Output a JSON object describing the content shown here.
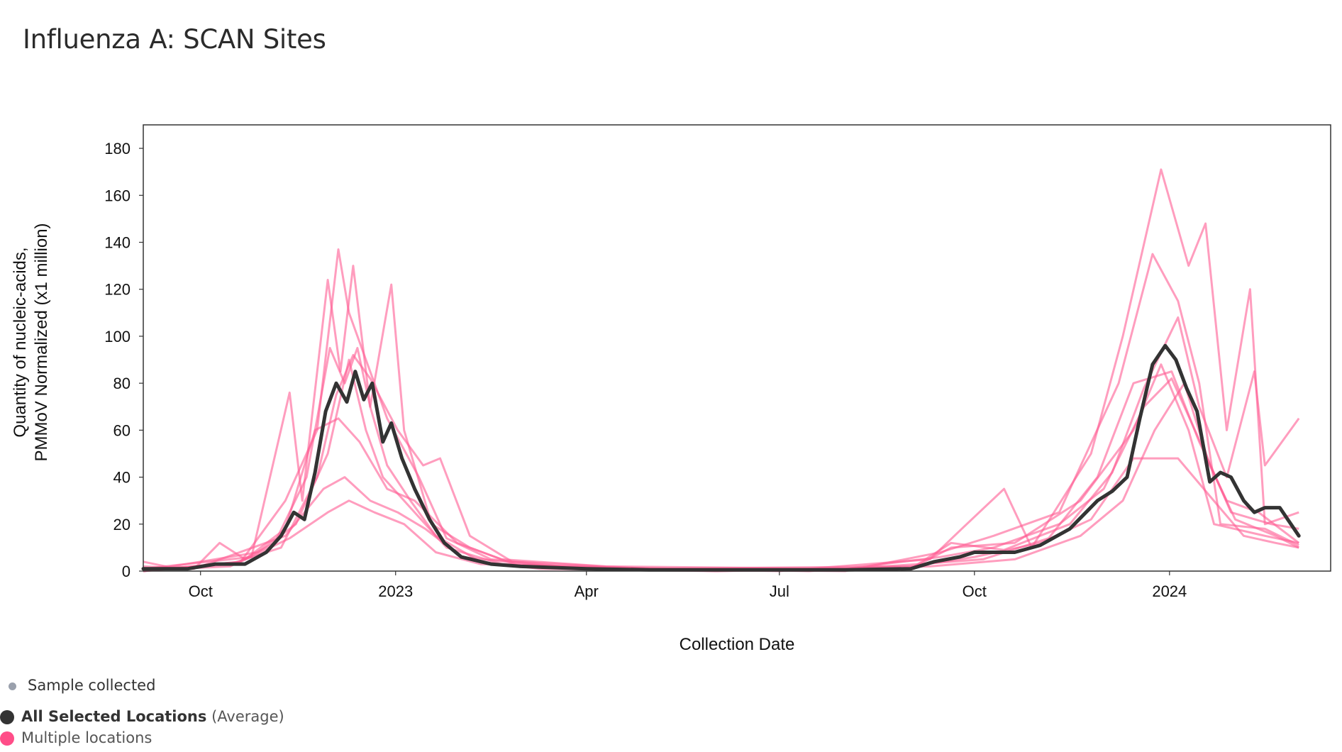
{
  "title": "Influenza A: SCAN Sites",
  "colors": {
    "sites": "#ff5c93",
    "average": "#333333",
    "sample_dot": "#9aa0ac",
    "frame": "#333333"
  },
  "legend": {
    "sample": "Sample collected",
    "average_bold": "All Selected Locations",
    "average_suffix": "(Average)",
    "multiple": "Multiple locations"
  },
  "chart_data": {
    "type": "line",
    "title": "Influenza A: SCAN Sites",
    "xlabel": "Collection Date",
    "ylabel_lines": [
      "Quantity of nucleic-acids,",
      "PMMoV Normalized (x1 million)"
    ],
    "ylim": [
      0,
      190
    ],
    "yticks": [
      0,
      20,
      40,
      60,
      80,
      100,
      120,
      140,
      160,
      180
    ],
    "xlim": [
      "2022-09-04",
      "2024-03-17"
    ],
    "xticks": [
      {
        "date": "2022-10-01",
        "label": "Oct"
      },
      {
        "date": "2023-01-01",
        "label": "2023"
      },
      {
        "date": "2023-04-01",
        "label": "Apr"
      },
      {
        "date": "2023-07-01",
        "label": "Jul"
      },
      {
        "date": "2023-10-01",
        "label": "Oct"
      },
      {
        "date": "2024-01-01",
        "label": "2024"
      }
    ],
    "grid": false,
    "legend_position": "bottom-left",
    "series": [
      {
        "name": "All Selected Locations (Average)",
        "points": [
          [
            "2022-09-04",
            1
          ],
          [
            "2022-09-25",
            1
          ],
          [
            "2022-10-08",
            3
          ],
          [
            "2022-10-22",
            3
          ],
          [
            "2022-11-01",
            8
          ],
          [
            "2022-11-08",
            15
          ],
          [
            "2022-11-14",
            25
          ],
          [
            "2022-11-19",
            22
          ],
          [
            "2022-11-24",
            42
          ],
          [
            "2022-11-29",
            68
          ],
          [
            "2022-12-04",
            80
          ],
          [
            "2022-12-09",
            72
          ],
          [
            "2022-12-13",
            85
          ],
          [
            "2022-12-17",
            73
          ],
          [
            "2022-12-21",
            80
          ],
          [
            "2022-12-26",
            55
          ],
          [
            "2022-12-30",
            63
          ],
          [
            "2023-01-04",
            48
          ],
          [
            "2023-01-10",
            35
          ],
          [
            "2023-01-17",
            22
          ],
          [
            "2023-01-24",
            12
          ],
          [
            "2023-02-01",
            6
          ],
          [
            "2023-02-15",
            3
          ],
          [
            "2023-03-01",
            2
          ],
          [
            "2023-04-01",
            1
          ],
          [
            "2023-05-01",
            0.5
          ],
          [
            "2023-06-01",
            0.5
          ],
          [
            "2023-07-01",
            0.5
          ],
          [
            "2023-08-01",
            0.5
          ],
          [
            "2023-09-01",
            1
          ],
          [
            "2023-09-12",
            4
          ],
          [
            "2023-09-24",
            6
          ],
          [
            "2023-10-01",
            8
          ],
          [
            "2023-10-20",
            8
          ],
          [
            "2023-11-01",
            11
          ],
          [
            "2023-11-15",
            18
          ],
          [
            "2023-11-28",
            30
          ],
          [
            "2023-12-05",
            34
          ],
          [
            "2023-12-12",
            40
          ],
          [
            "2023-12-18",
            65
          ],
          [
            "2023-12-24",
            88
          ],
          [
            "2023-12-30",
            96
          ],
          [
            "2024-01-04",
            90
          ],
          [
            "2024-01-09",
            78
          ],
          [
            "2024-01-14",
            68
          ],
          [
            "2024-01-20",
            38
          ],
          [
            "2024-01-25",
            42
          ],
          [
            "2024-01-30",
            40
          ],
          [
            "2024-02-05",
            30
          ],
          [
            "2024-02-10",
            25
          ],
          [
            "2024-02-15",
            27
          ],
          [
            "2024-02-22",
            27
          ],
          [
            "2024-03-02",
            15
          ]
        ]
      }
    ],
    "site_series": [
      {
        "points": [
          [
            "2022-09-04",
            4
          ],
          [
            "2022-09-20",
            1
          ],
          [
            "2022-10-15",
            2
          ],
          [
            "2022-11-05",
            12
          ],
          [
            "2022-11-20",
            40
          ],
          [
            "2022-12-01",
            95
          ],
          [
            "2022-12-08",
            80
          ],
          [
            "2022-12-14",
            95
          ],
          [
            "2022-12-20",
            70
          ],
          [
            "2022-12-28",
            45
          ],
          [
            "2023-01-08",
            30
          ],
          [
            "2023-01-20",
            15
          ],
          [
            "2023-02-10",
            4
          ],
          [
            "2023-03-10",
            1
          ],
          [
            "2023-06-01",
            0
          ],
          [
            "2023-09-01",
            1
          ],
          [
            "2023-09-20",
            10
          ],
          [
            "2023-10-20",
            12
          ],
          [
            "2023-11-20",
            30
          ],
          [
            "2023-12-15",
            60
          ],
          [
            "2023-12-28",
            88
          ],
          [
            "2024-01-10",
            60
          ],
          [
            "2024-01-22",
            20
          ],
          [
            "2024-02-15",
            15
          ],
          [
            "2024-03-02",
            12
          ]
        ]
      },
      {
        "points": [
          [
            "2022-09-04",
            0
          ],
          [
            "2022-10-20",
            4
          ],
          [
            "2022-11-10",
            30
          ],
          [
            "2022-11-25",
            60
          ],
          [
            "2022-12-05",
            137
          ],
          [
            "2022-12-10",
            110
          ],
          [
            "2022-12-18",
            90
          ],
          [
            "2022-12-28",
            65
          ],
          [
            "2023-01-12",
            40
          ],
          [
            "2023-01-25",
            14
          ],
          [
            "2023-02-15",
            5
          ],
          [
            "2023-04-01",
            1
          ],
          [
            "2023-08-01",
            0
          ],
          [
            "2023-09-15",
            8
          ],
          [
            "2023-10-10",
            15
          ],
          [
            "2023-11-10",
            25
          ],
          [
            "2023-12-08",
            80
          ],
          [
            "2023-12-24",
            135
          ],
          [
            "2024-01-05",
            115
          ],
          [
            "2024-01-15",
            80
          ],
          [
            "2024-01-25",
            20
          ],
          [
            "2024-02-15",
            18
          ],
          [
            "2024-03-02",
            11
          ]
        ]
      },
      {
        "points": [
          [
            "2022-09-04",
            1
          ],
          [
            "2022-10-25",
            6
          ],
          [
            "2022-11-12",
            76
          ],
          [
            "2022-11-18",
            30
          ],
          [
            "2022-11-30",
            124
          ],
          [
            "2022-12-06",
            85
          ],
          [
            "2022-12-12",
            130
          ],
          [
            "2022-12-20",
            70
          ],
          [
            "2022-12-30",
            122
          ],
          [
            "2023-01-05",
            60
          ],
          [
            "2023-01-18",
            20
          ],
          [
            "2023-02-05",
            10
          ],
          [
            "2023-03-01",
            2
          ],
          [
            "2023-07-01",
            0
          ],
          [
            "2023-09-10",
            5
          ],
          [
            "2023-09-25",
            18
          ],
          [
            "2023-10-15",
            35
          ],
          [
            "2023-10-28",
            10
          ],
          [
            "2023-11-25",
            50
          ],
          [
            "2023-12-10",
            100
          ],
          [
            "2023-12-28",
            171
          ],
          [
            "2024-01-10",
            130
          ],
          [
            "2024-01-18",
            148
          ],
          [
            "2024-01-28",
            60
          ],
          [
            "2024-02-08",
            120
          ],
          [
            "2024-02-15",
            20
          ],
          [
            "2024-03-02",
            25
          ]
        ]
      },
      {
        "points": [
          [
            "2022-09-04",
            0
          ],
          [
            "2022-10-28",
            8
          ],
          [
            "2022-11-15",
            20
          ],
          [
            "2022-11-30",
            50
          ],
          [
            "2022-12-10",
            90
          ],
          [
            "2022-12-18",
            60
          ],
          [
            "2022-12-26",
            40
          ],
          [
            "2023-01-10",
            25
          ],
          [
            "2023-01-25",
            10
          ],
          [
            "2023-02-20",
            3
          ],
          [
            "2023-05-01",
            1
          ],
          [
            "2023-09-01",
            2
          ],
          [
            "2023-10-01",
            6
          ],
          [
            "2023-11-01",
            12
          ],
          [
            "2023-11-25",
            22
          ],
          [
            "2023-12-15",
            48
          ],
          [
            "2024-01-05",
            48
          ],
          [
            "2024-01-20",
            32
          ],
          [
            "2024-02-05",
            15
          ],
          [
            "2024-02-20",
            12
          ],
          [
            "2024-03-02",
            10
          ]
        ]
      },
      {
        "points": [
          [
            "2022-09-04",
            1
          ],
          [
            "2022-10-01",
            2
          ],
          [
            "2022-11-10",
            15
          ],
          [
            "2022-11-28",
            35
          ],
          [
            "2022-12-08",
            40
          ],
          [
            "2022-12-20",
            30
          ],
          [
            "2023-01-02",
            25
          ],
          [
            "2023-01-15",
            18
          ],
          [
            "2023-02-01",
            6
          ],
          [
            "2023-03-15",
            2
          ],
          [
            "2023-07-15",
            0
          ],
          [
            "2023-09-05",
            3
          ],
          [
            "2023-10-05",
            5
          ],
          [
            "2023-11-05",
            14
          ],
          [
            "2023-11-28",
            40
          ],
          [
            "2023-12-15",
            80
          ],
          [
            "2024-01-02",
            85
          ],
          [
            "2024-01-15",
            55
          ],
          [
            "2024-01-28",
            30
          ],
          [
            "2024-02-12",
            25
          ],
          [
            "2024-03-02",
            12
          ]
        ]
      },
      {
        "points": [
          [
            "2022-09-04",
            0
          ],
          [
            "2022-10-15",
            3
          ],
          [
            "2022-11-08",
            10
          ],
          [
            "2022-11-25",
            40
          ],
          [
            "2022-12-04",
            75
          ],
          [
            "2022-12-12",
            92
          ],
          [
            "2022-12-20",
            82
          ],
          [
            "2023-01-02",
            60
          ],
          [
            "2023-01-14",
            45
          ],
          [
            "2023-01-22",
            48
          ],
          [
            "2023-02-05",
            15
          ],
          [
            "2023-02-25",
            4
          ],
          [
            "2023-05-01",
            1
          ],
          [
            "2023-09-01",
            1
          ],
          [
            "2023-09-20",
            12
          ],
          [
            "2023-10-15",
            9
          ],
          [
            "2023-11-15",
            20
          ],
          [
            "2023-12-05",
            42
          ],
          [
            "2023-12-20",
            78
          ],
          [
            "2024-01-05",
            108
          ],
          [
            "2024-01-15",
            70
          ],
          [
            "2024-01-28",
            40
          ],
          [
            "2024-02-10",
            85
          ],
          [
            "2024-02-15",
            45
          ],
          [
            "2024-03-02",
            65
          ]
        ]
      },
      {
        "points": [
          [
            "2022-09-04",
            2
          ],
          [
            "2022-09-28",
            1
          ],
          [
            "2022-10-10",
            12
          ],
          [
            "2022-10-22",
            5
          ],
          [
            "2022-11-10",
            18
          ],
          [
            "2022-11-24",
            60
          ],
          [
            "2022-12-05",
            65
          ],
          [
            "2022-12-15",
            55
          ],
          [
            "2022-12-28",
            35
          ],
          [
            "2023-01-10",
            30
          ],
          [
            "2023-01-30",
            12
          ],
          [
            "2023-02-20",
            5
          ],
          [
            "2023-04-10",
            2
          ],
          [
            "2023-08-01",
            1
          ],
          [
            "2023-09-15",
            6
          ],
          [
            "2023-10-10",
            10
          ],
          [
            "2023-11-10",
            20
          ],
          [
            "2023-12-01",
            35
          ],
          [
            "2023-12-20",
            70
          ],
          [
            "2024-01-02",
            82
          ],
          [
            "2024-01-18",
            50
          ],
          [
            "2024-01-30",
            25
          ],
          [
            "2024-02-18",
            20
          ],
          [
            "2024-03-02",
            18
          ]
        ]
      },
      {
        "points": [
          [
            "2022-09-04",
            0
          ],
          [
            "2022-10-20",
            4
          ],
          [
            "2022-11-12",
            14
          ],
          [
            "2022-11-30",
            25
          ],
          [
            "2022-12-10",
            30
          ],
          [
            "2022-12-22",
            25
          ],
          [
            "2023-01-05",
            20
          ],
          [
            "2023-01-20",
            8
          ],
          [
            "2023-02-10",
            3
          ],
          [
            "2023-06-01",
            0
          ],
          [
            "2023-09-10",
            2
          ],
          [
            "2023-10-20",
            5
          ],
          [
            "2023-11-20",
            15
          ],
          [
            "2023-12-10",
            30
          ],
          [
            "2023-12-25",
            60
          ],
          [
            "2024-01-08",
            80
          ],
          [
            "2024-01-20",
            45
          ],
          [
            "2024-02-01",
            22
          ],
          [
            "2024-02-20",
            15
          ],
          [
            "2024-03-02",
            10
          ]
        ]
      }
    ]
  }
}
